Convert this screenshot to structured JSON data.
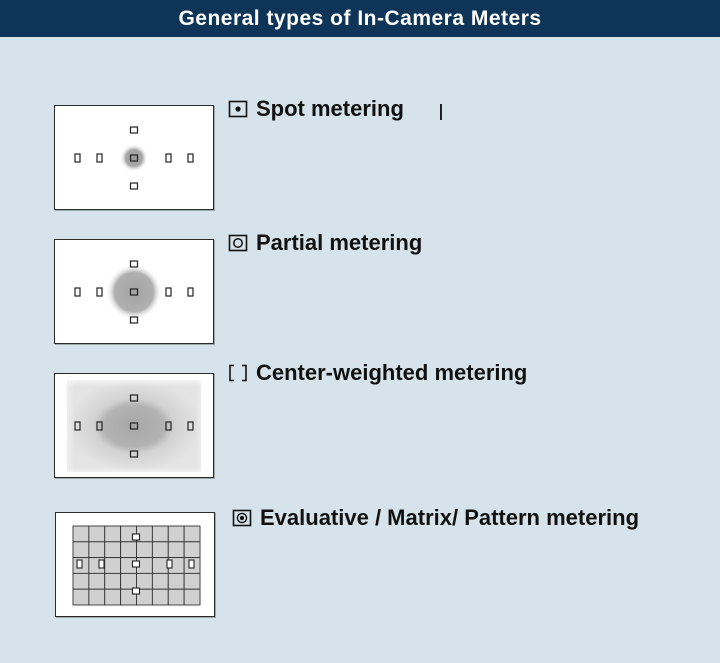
{
  "header": {
    "title": "General types of In-Camera Meters"
  },
  "modes": [
    {
      "label": "Spot metering",
      "icon": "spot-metering-icon"
    },
    {
      "label": "Partial metering",
      "icon": "partial-metering-icon"
    },
    {
      "label": "Center-weighted metering",
      "icon": "center-weighted-metering-icon"
    },
    {
      "label": "Evaluative / Matrix/ Pattern metering",
      "icon": "evaluative-metering-icon"
    }
  ],
  "colors": {
    "background": "#d6e3ea",
    "header": "#0e3558",
    "header_text": "#ffffff",
    "metering_shade": "#9a9a9a",
    "grid_cell": "#d0d0d0"
  }
}
